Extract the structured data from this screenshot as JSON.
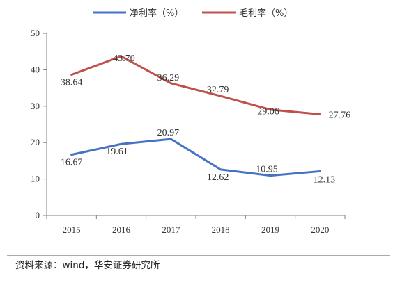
{
  "chart_data": {
    "type": "line",
    "x": [
      "2015",
      "2016",
      "2017",
      "2018",
      "2019",
      "2020"
    ],
    "series": [
      {
        "name": "净利率（%）",
        "color": "#4472c4",
        "values": [
          16.67,
          19.61,
          20.97,
          12.62,
          10.95,
          12.13
        ]
      },
      {
        "name": "毛利率（%）",
        "color": "#c0504d",
        "values": [
          38.64,
          43.7,
          36.29,
          32.79,
          29.06,
          27.76
        ]
      }
    ],
    "ylim": [
      0,
      50
    ],
    "yticks": [
      0,
      10,
      20,
      30,
      40,
      50
    ],
    "grid": false,
    "legend_position": "top"
  },
  "source": "资料来源：wind，华安证券研究所"
}
